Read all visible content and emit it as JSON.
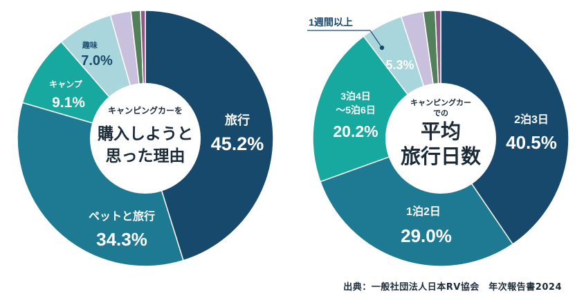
{
  "colors": {
    "dark": "#17496c",
    "mid": "#1e7a93",
    "teal": "#17a9a0",
    "pale": "#a9d6dc",
    "lilac": "#c8c0dd",
    "green": "#52805a",
    "plum": "#8c5b86",
    "white": "#ffffff"
  },
  "chart_data": [
    {
      "type": "pie",
      "variant": "donut",
      "title": "キャンピングカーを購入しようと思った理由",
      "title_lines": [
        "キャンピングカーを",
        "購入しようと",
        "思った理由"
      ],
      "slices": [
        {
          "name": "旅行",
          "value": 45.2,
          "label": "45.2%",
          "color": "#17496c"
        },
        {
          "name": "ペットと旅行",
          "value": 34.3,
          "label": "34.3%",
          "color": "#1e7a93"
        },
        {
          "name": "キャンプ",
          "value": 9.1,
          "label": "9.1%",
          "color": "#17a9a0"
        },
        {
          "name": "趣味",
          "value": 7.0,
          "label": "7.0%",
          "color": "#a9d6dc"
        },
        {
          "name": "",
          "value": 2.6,
          "label": "",
          "color": "#c8c0dd"
        },
        {
          "name": "",
          "value": 1.2,
          "label": "",
          "color": "#52805a"
        },
        {
          "name": "",
          "value": 0.6,
          "label": "",
          "color": "#8c5b86"
        }
      ]
    },
    {
      "type": "pie",
      "variant": "donut",
      "title": "キャンピングカーでの平均旅行日数",
      "title_lines": [
        "キャンピングカー",
        "での",
        "平均",
        "旅行日数"
      ],
      "slices": [
        {
          "name": "2泊3日",
          "value": 40.5,
          "label": "40.5%",
          "color": "#17496c"
        },
        {
          "name": "1泊2日",
          "value": 29.0,
          "label": "29.0%",
          "color": "#1e7a93"
        },
        {
          "name": "3泊4日～5泊6日",
          "name_lines": [
            "3泊4日",
            "～5泊6日"
          ],
          "value": 20.2,
          "label": "20.2%",
          "color": "#17a9a0"
        },
        {
          "name": "1週間以上",
          "value": 5.3,
          "label": "5.3%",
          "color": "#a9d6dc"
        },
        {
          "name": "",
          "value": 2.8,
          "label": "",
          "color": "#c8c0dd"
        },
        {
          "name": "",
          "value": 1.5,
          "label": "",
          "color": "#52805a"
        },
        {
          "name": "",
          "value": 0.7,
          "label": "",
          "color": "#8c5b86"
        }
      ]
    }
  ],
  "source": "出典：一般社団法人日本RV協会　年次報告書2024"
}
